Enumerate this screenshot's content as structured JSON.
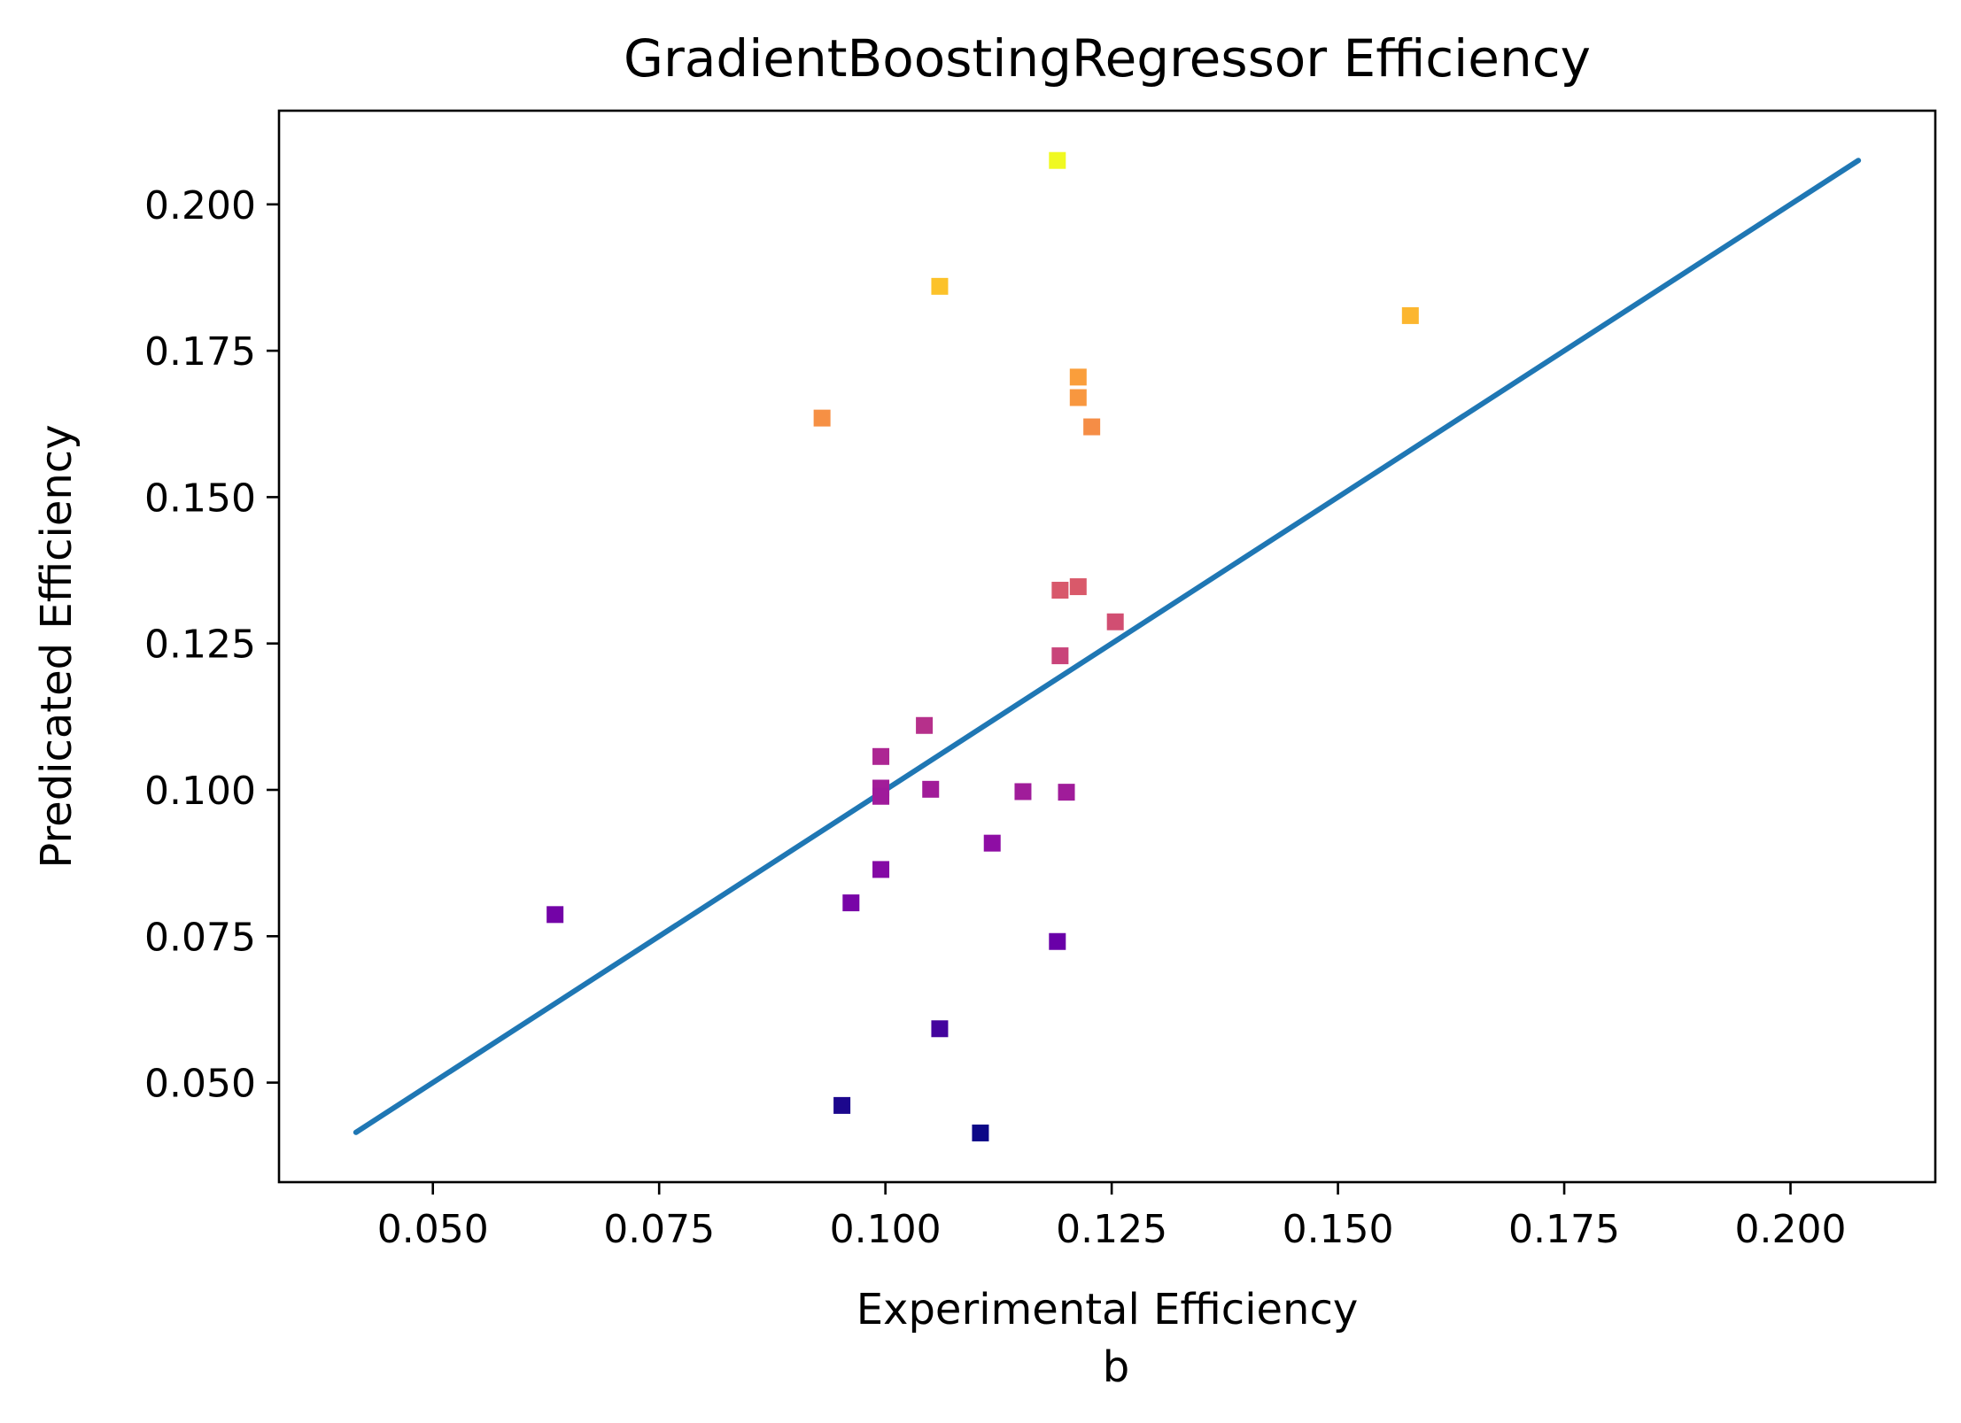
{
  "chart_data": {
    "type": "scatter",
    "title": "GradientBoostingRegressor Efficiency",
    "xlabel": "Experimental Efficiency",
    "ylabel": "Predicated Efficiency",
    "caption": "b",
    "xlim": [
      0.033,
      0.216
    ],
    "ylim": [
      0.033,
      0.216
    ],
    "xticks": [
      0.05,
      0.075,
      0.1,
      0.125,
      0.15,
      0.175,
      0.2
    ],
    "yticks": [
      0.05,
      0.075,
      0.1,
      0.125,
      0.15,
      0.175,
      0.2
    ],
    "xtick_labels": [
      "0.050",
      "0.075",
      "0.100",
      "0.125",
      "0.150",
      "0.175",
      "0.200"
    ],
    "ytick_labels": [
      "0.050",
      "0.075",
      "0.100",
      "0.125",
      "0.150",
      "0.175",
      "0.200"
    ],
    "grid": false,
    "colormap": "plasma",
    "color_by": "y",
    "marker": "square",
    "reference_line": {
      "x": [
        0.0415,
        0.2075
      ],
      "y": [
        0.0415,
        0.2075
      ],
      "color": "#1f77b4"
    },
    "points": [
      {
        "x": 0.119,
        "y": 0.2075
      },
      {
        "x": 0.106,
        "y": 0.186
      },
      {
        "x": 0.158,
        "y": 0.181
      },
      {
        "x": 0.1213,
        "y": 0.1705
      },
      {
        "x": 0.1213,
        "y": 0.167
      },
      {
        "x": 0.093,
        "y": 0.1635
      },
      {
        "x": 0.1228,
        "y": 0.162
      },
      {
        "x": 0.1213,
        "y": 0.1347
      },
      {
        "x": 0.1193,
        "y": 0.1341
      },
      {
        "x": 0.1254,
        "y": 0.1287
      },
      {
        "x": 0.1193,
        "y": 0.1229
      },
      {
        "x": 0.1043,
        "y": 0.111
      },
      {
        "x": 0.0995,
        "y": 0.1057
      },
      {
        "x": 0.0995,
        "y": 0.1003
      },
      {
        "x": 0.0995,
        "y": 0.0989
      },
      {
        "x": 0.105,
        "y": 0.1001
      },
      {
        "x": 0.1152,
        "y": 0.0997
      },
      {
        "x": 0.12,
        "y": 0.0996
      },
      {
        "x": 0.1118,
        "y": 0.0909
      },
      {
        "x": 0.0995,
        "y": 0.0864
      },
      {
        "x": 0.0962,
        "y": 0.0807
      },
      {
        "x": 0.0635,
        "y": 0.0787
      },
      {
        "x": 0.119,
        "y": 0.0741
      },
      {
        "x": 0.106,
        "y": 0.0592
      },
      {
        "x": 0.0952,
        "y": 0.0461
      },
      {
        "x": 0.1105,
        "y": 0.0414
      }
    ]
  }
}
